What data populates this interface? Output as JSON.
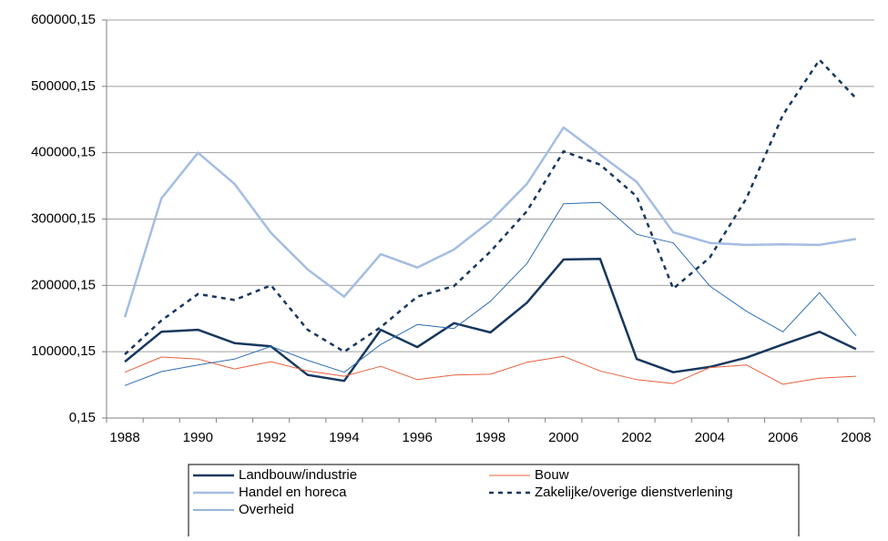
{
  "chart_data": {
    "type": "line",
    "categories": [
      "1988",
      null,
      "1990",
      null,
      "1992",
      null,
      "1994",
      null,
      "1996",
      null,
      "1998",
      null,
      "2000",
      null,
      "2002",
      null,
      "2004",
      null,
      "2006",
      null,
      "2008"
    ],
    "ylim": [
      0.15,
      600000.15
    ],
    "yticks": [
      {
        "value": 0.15,
        "label": "0,15"
      },
      {
        "value": 100000.15,
        "label": "100000,15"
      },
      {
        "value": 200000.15,
        "label": "200000,15"
      },
      {
        "value": 300000.15,
        "label": "300000,15"
      },
      {
        "value": 400000.15,
        "label": "400000,15"
      },
      {
        "value": 500000.15,
        "label": "500000,15"
      },
      {
        "value": 600000.15,
        "label": "600000,15"
      }
    ],
    "grid": true,
    "legend": "bottom",
    "series": [
      {
        "name": "Landbouw/industrie",
        "color": "#17375e",
        "line_width": 2.5,
        "dashed": false,
        "values": [
          85000,
          130000,
          133000,
          113000,
          108000,
          65000,
          56000,
          133000,
          107000,
          143000,
          129000,
          174000,
          239000,
          240000,
          89000,
          69000,
          77000,
          91000,
          111000,
          130000,
          104000
        ]
      },
      {
        "name": "Bouw",
        "color": "#e8603c",
        "line_width": 1,
        "dashed": false,
        "values": [
          69000,
          92000,
          89000,
          74000,
          85000,
          71000,
          63000,
          78000,
          58000,
          65000,
          66000,
          84000,
          93000,
          71000,
          58000,
          52000,
          76000,
          80000,
          51000,
          60000,
          63000
        ]
      },
      {
        "name": "Handel en horeca",
        "color": "#a4bde3",
        "line_width": 2.5,
        "dashed": false,
        "values": [
          152000,
          331000,
          400000,
          353000,
          279000,
          224000,
          183000,
          247000,
          227000,
          254000,
          297000,
          353000,
          438000,
          397000,
          356000,
          280000,
          264000,
          261000,
          262000,
          261000,
          270000
        ]
      },
      {
        "name": "Zakelijke/overige dienstverlening",
        "color": "#17375e",
        "line_width": 2.5,
        "dashed": true,
        "values": [
          96000,
          147000,
          187000,
          178000,
          200000,
          133000,
          100000,
          137000,
          183000,
          199000,
          251000,
          312000,
          402000,
          382000,
          334000,
          195000,
          242000,
          331000,
          457000,
          540000,
          482000
        ]
      },
      {
        "name": "Overheid",
        "color": "#2e6db4",
        "line_width": 1,
        "dashed": false,
        "values": [
          49000,
          70000,
          80000,
          89000,
          108000,
          87000,
          69000,
          111000,
          141000,
          135000,
          176000,
          233000,
          323000,
          325000,
          277000,
          264000,
          199000,
          161000,
          130000,
          189000,
          124000
        ]
      }
    ]
  }
}
